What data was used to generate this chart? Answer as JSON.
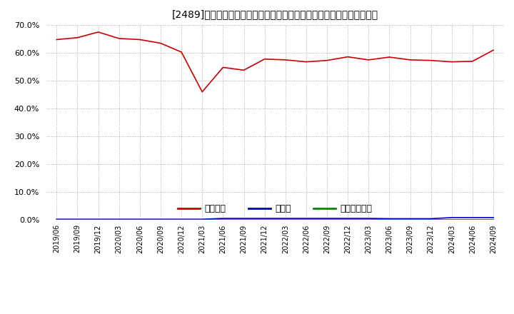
{
  "title": "[2489]　自己資本、のれん、繰延税金資産の総資産に対する比率の推移",
  "x_labels": [
    "2019/06",
    "2019/09",
    "2019/12",
    "2020/03",
    "2020/06",
    "2020/09",
    "2020/12",
    "2021/03",
    "2021/06",
    "2021/09",
    "2021/12",
    "2022/03",
    "2022/06",
    "2022/09",
    "2022/12",
    "2023/03",
    "2023/06",
    "2023/09",
    "2023/12",
    "2024/03",
    "2024/06",
    "2024/09"
  ],
  "jikoshihon": [
    64.8,
    65.5,
    67.5,
    65.2,
    64.8,
    63.5,
    60.3,
    46.0,
    54.8,
    53.8,
    57.8,
    57.5,
    56.8,
    57.3,
    58.6,
    57.5,
    58.5,
    57.5,
    57.3,
    56.8,
    57.0,
    61.0
  ],
  "noren": [
    0.2,
    0.2,
    0.2,
    0.2,
    0.2,
    0.2,
    0.2,
    0.2,
    0.5,
    0.5,
    0.5,
    0.5,
    0.5,
    0.5,
    0.5,
    0.5,
    0.4,
    0.4,
    0.4,
    0.8,
    0.8,
    0.8
  ],
  "kuribeikin": [
    0.05,
    0.05,
    0.05,
    0.05,
    0.05,
    0.05,
    0.05,
    0.05,
    0.05,
    0.05,
    0.05,
    0.05,
    0.05,
    0.05,
    0.05,
    0.05,
    0.05,
    0.05,
    0.05,
    0.05,
    0.05,
    0.05
  ],
  "jikoshihon_color": "#cc0000",
  "noren_color": "#0000cc",
  "kuribeikin_color": "#008800",
  "ylim": [
    0,
    70
  ],
  "yticks": [
    0,
    10,
    20,
    30,
    40,
    50,
    60,
    70
  ],
  "background_color": "#ffffff",
  "grid_color": "#999999",
  "legend_labels": [
    "自己資本",
    "のれん",
    "繰延税金資産"
  ],
  "title_fontsize": 12
}
